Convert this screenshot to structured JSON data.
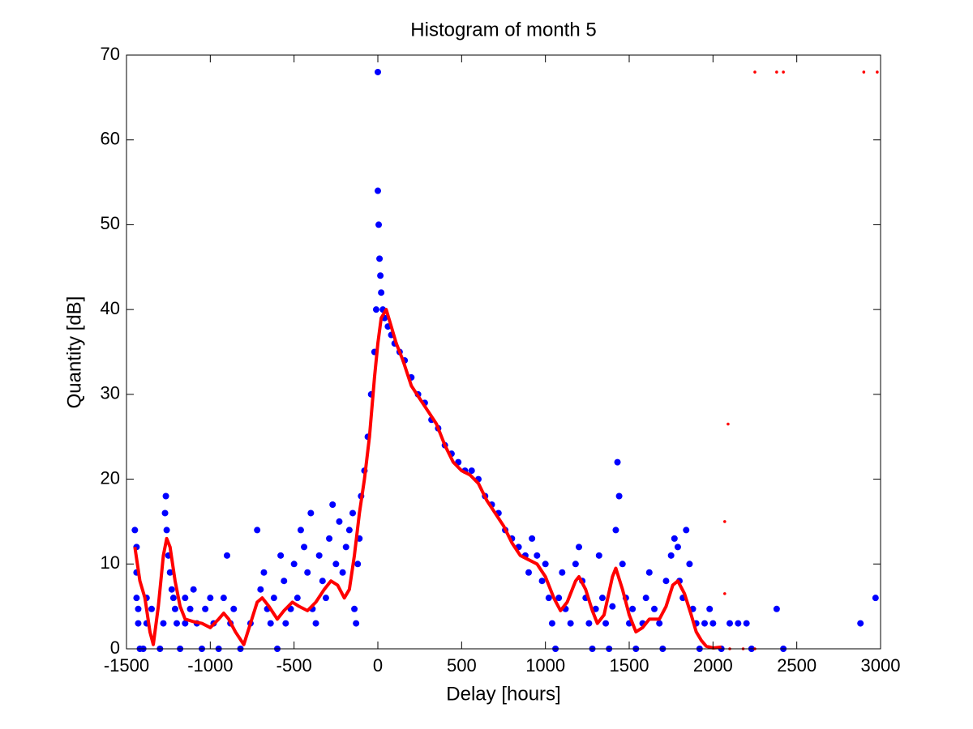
{
  "chart_data": {
    "type": "scatter",
    "title": "Histogram of month 5",
    "x_label": "Delay [hours]",
    "y_label": "Quantity [dB]",
    "xlim": [
      -1500,
      3000
    ],
    "ylim": [
      0,
      70
    ],
    "xticks": [
      -1500,
      -1000,
      -500,
      0,
      500,
      1000,
      1500,
      2000,
      2500,
      3000
    ],
    "yticks": [
      0,
      10,
      20,
      30,
      40,
      50,
      60,
      70
    ],
    "grid": false,
    "series": [
      {
        "color": "#0000ff",
        "style": "dots",
        "x": [
          -1450,
          -1440,
          -1440,
          -1440,
          -1430,
          -1430,
          -1420,
          -1400,
          -1380,
          -1380,
          -1350,
          -1300,
          -1280,
          -1270,
          -1265,
          -1260,
          -1250,
          -1240,
          -1230,
          -1220,
          -1210,
          -1200,
          -1180,
          -1150,
          -1150,
          -1120,
          -1100,
          -1080,
          -1050,
          -1030,
          -1000,
          -980,
          -950,
          -920,
          -900,
          -880,
          -860,
          -820,
          -760,
          -720,
          -700,
          -680,
          -660,
          -640,
          -620,
          -600,
          -580,
          -560,
          -550,
          -520,
          -500,
          -480,
          -460,
          -440,
          -420,
          -400,
          -390,
          -370,
          -350,
          -330,
          -310,
          -290,
          -270,
          -250,
          -230,
          -210,
          -190,
          -170,
          -150,
          -140,
          -130,
          -120,
          -110,
          -100,
          -80,
          -60,
          -40,
          -20,
          -10,
          0,
          0,
          5,
          10,
          15,
          20,
          30,
          40,
          60,
          80,
          100,
          130,
          160,
          200,
          240,
          280,
          320,
          360,
          400,
          440,
          480,
          520,
          560,
          600,
          640,
          680,
          720,
          760,
          800,
          840,
          880,
          900,
          920,
          950,
          980,
          1000,
          1020,
          1040,
          1060,
          1080,
          1100,
          1120,
          1150,
          1180,
          1200,
          1220,
          1240,
          1260,
          1280,
          1300,
          1320,
          1340,
          1360,
          1380,
          1400,
          1420,
          1430,
          1440,
          1460,
          1480,
          1500,
          1520,
          1540,
          1580,
          1600,
          1620,
          1650,
          1680,
          1700,
          1720,
          1750,
          1770,
          1790,
          1800,
          1820,
          1840,
          1860,
          1880,
          1900,
          1920,
          1950,
          1980,
          2000,
          2050,
          2100,
          2150,
          2200,
          2230,
          2380,
          2420,
          2880,
          2970
        ],
        "values": [
          14,
          12,
          9,
          6,
          4.7,
          3,
          0,
          0,
          3,
          6,
          4.7,
          0,
          3,
          16,
          18,
          14,
          11,
          9,
          7,
          6,
          4.7,
          3,
          0,
          3,
          6,
          4.7,
          7,
          3,
          0,
          4.7,
          6,
          3,
          0,
          6,
          11,
          3,
          4.7,
          0,
          3,
          14,
          7,
          9,
          4.7,
          3,
          6,
          0,
          11,
          8,
          3,
          4.7,
          10,
          6,
          14,
          12,
          9,
          16,
          4.7,
          3,
          11,
          8,
          6,
          13,
          17,
          10,
          15,
          9,
          12,
          14,
          16,
          4.7,
          3,
          10,
          13,
          18,
          21,
          25,
          30,
          35,
          40,
          68,
          54,
          50,
          46,
          44,
          42,
          40,
          39,
          38,
          37,
          36,
          35,
          34,
          32,
          30,
          29,
          27,
          26,
          24,
          23,
          22,
          21,
          21,
          20,
          18,
          17,
          16,
          14,
          13,
          12,
          11,
          9,
          13,
          11,
          8,
          10,
          6,
          3,
          0,
          6,
          9,
          4.7,
          3,
          10,
          12,
          8,
          6,
          3,
          0,
          4.7,
          11,
          6,
          3,
          0,
          5,
          14,
          22,
          18,
          10,
          6,
          3,
          4.7,
          0,
          3,
          6,
          9,
          4.7,
          3,
          0,
          8,
          11,
          13,
          12,
          8,
          6,
          14,
          10,
          4.7,
          3,
          0,
          3,
          4.7,
          3,
          0,
          3,
          3,
          3,
          0,
          4.7,
          0,
          3,
          6
        ]
      },
      {
        "color": "#ff0000",
        "style": "line",
        "x": [
          -1450,
          -1420,
          -1390,
          -1360,
          -1340,
          -1310,
          -1280,
          -1260,
          -1240,
          -1210,
          -1180,
          -1150,
          -1100,
          -1050,
          -1000,
          -950,
          -920,
          -890,
          -850,
          -800,
          -760,
          -720,
          -690,
          -650,
          -600,
          -560,
          -510,
          -470,
          -420,
          -370,
          -320,
          -280,
          -240,
          -200,
          -170,
          -140,
          -110,
          -80,
          -50,
          -20,
          0,
          20,
          50,
          80,
          110,
          150,
          200,
          250,
          300,
          350,
          400,
          450,
          500,
          550,
          600,
          650,
          700,
          750,
          800,
          850,
          900,
          950,
          1000,
          1050,
          1090,
          1130,
          1180,
          1200,
          1240,
          1280,
          1310,
          1350,
          1400,
          1420,
          1460,
          1500,
          1540,
          1580,
          1620,
          1680,
          1720,
          1760,
          1790,
          1830,
          1870,
          1900,
          1930,
          1960,
          2000,
          2050
        ],
        "values": [
          12,
          8,
          6,
          2,
          0.5,
          5,
          11,
          13,
          12,
          8,
          5,
          3.5,
          3.2,
          3,
          2.5,
          3.5,
          4.2,
          3.5,
          2,
          0.5,
          3,
          5.5,
          6,
          5,
          3.5,
          4.5,
          5.5,
          5,
          4.5,
          5.5,
          7,
          8,
          7.5,
          6,
          7,
          11,
          16,
          20,
          25,
          32,
          36,
          39,
          40,
          38,
          36,
          34,
          31,
          29.5,
          28,
          26.5,
          24,
          22,
          21,
          20.5,
          19.5,
          17.5,
          16,
          14.5,
          12.5,
          11,
          10.5,
          10,
          8.5,
          6,
          4.5,
          5.5,
          8,
          8.5,
          7,
          4.5,
          3,
          4,
          8.5,
          9.5,
          7,
          4,
          2,
          2.5,
          3.5,
          3.5,
          5,
          7.5,
          8,
          6.5,
          4,
          2,
          1,
          0.3,
          0.1,
          0.2
        ]
      },
      {
        "color": "#ff0000",
        "style": "small-dots",
        "x": [
          2250,
          2380,
          2420,
          2900,
          2980,
          2090,
          2070,
          2070,
          2100,
          2180,
          2250
        ],
        "values": [
          68,
          68,
          68,
          68,
          68,
          26.5,
          15,
          6.5,
          0,
          0,
          0
        ]
      }
    ]
  }
}
